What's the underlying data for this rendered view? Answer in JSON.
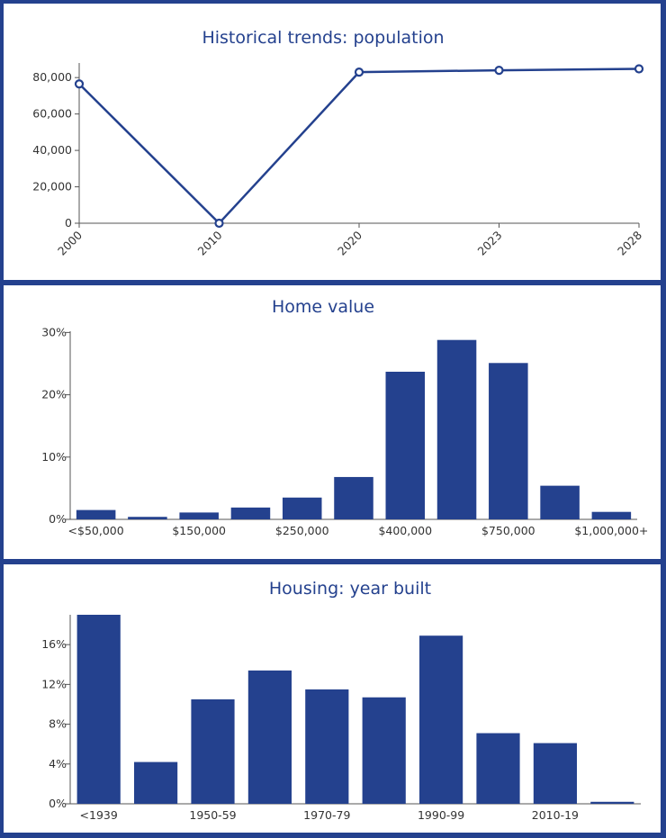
{
  "colors": {
    "accent": "#24418e",
    "background": "#ffffff",
    "frame": "#24418e"
  },
  "chart_data": [
    {
      "type": "line",
      "title": "Historical trends: population",
      "x": [
        "2000",
        "2010",
        "2020",
        "2023",
        "2028"
      ],
      "series": [
        {
          "values": [
            76500,
            0,
            83000,
            84000,
            84800
          ]
        }
      ],
      "yticks": [
        "0",
        "20,000",
        "40,000",
        "60,000",
        "80,000"
      ],
      "ytick_values": [
        0,
        20000,
        40000,
        60000,
        80000
      ],
      "ylim": [
        0,
        88000
      ],
      "grid": false
    },
    {
      "type": "bar",
      "title": "Home value",
      "categories": [
        "<$50,000",
        "",
        "$150,000",
        "",
        "$250,000",
        "",
        "$400,000",
        "",
        "$750,000",
        "",
        "$1,000,000+"
      ],
      "values": [
        1.5,
        0.4,
        1.1,
        1.9,
        3.5,
        6.8,
        23.7,
        28.8,
        25.1,
        5.4,
        1.2
      ],
      "yticks": [
        "0%",
        "10%",
        "20%",
        "30%"
      ],
      "ytick_values": [
        0,
        10,
        20,
        30
      ],
      "ylim": [
        0,
        30.2
      ],
      "grid": false
    },
    {
      "type": "bar",
      "title": "Housing: year built",
      "categories": [
        "<1939",
        "",
        "1950-59",
        "",
        "1970-79",
        "",
        "1990-99",
        "",
        "2010-19",
        ""
      ],
      "values": [
        19.0,
        4.2,
        10.5,
        13.4,
        11.5,
        10.7,
        16.9,
        7.1,
        6.1,
        0.2
      ],
      "yticks": [
        "0%",
        "4%",
        "8%",
        "12%",
        "16%"
      ],
      "ytick_values": [
        0,
        4,
        8,
        12,
        16
      ],
      "ylim": [
        0,
        19.0
      ],
      "grid": false
    }
  ]
}
